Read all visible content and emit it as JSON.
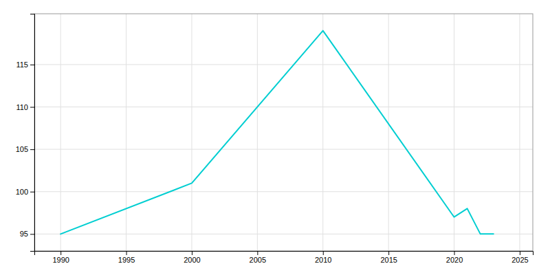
{
  "chart_data": {
    "type": "line",
    "x": [
      1990,
      2000,
      2010,
      2020,
      2021,
      2022,
      2023
    ],
    "values": [
      95,
      101,
      119,
      97,
      98,
      95,
      95
    ],
    "color": "#00CED1",
    "xlim": [
      1988,
      2026
    ],
    "ylim": [
      93,
      121
    ],
    "xticks": [
      1990,
      1995,
      2000,
      2005,
      2010,
      2015,
      2020,
      2025
    ],
    "yticks": [
      95,
      100,
      105,
      110,
      115
    ],
    "grid": true
  }
}
